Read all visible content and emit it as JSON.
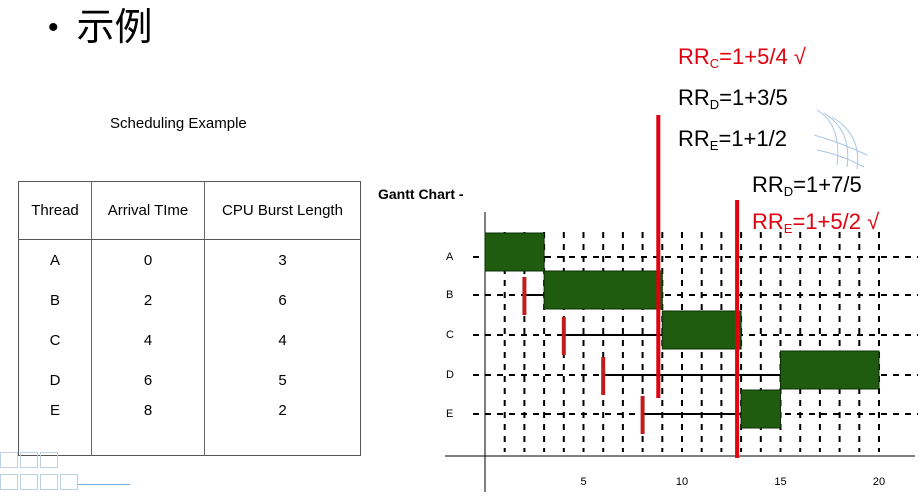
{
  "slide": {
    "bullet": "•",
    "title": "示例"
  },
  "schedule": {
    "title": "Scheduling Example",
    "columns": [
      "Thread",
      "Arrival TIme",
      "CPU Burst Length"
    ],
    "rows": [
      [
        "A",
        "0",
        "3"
      ],
      [
        "B",
        "2",
        "6"
      ],
      [
        "C",
        "4",
        "4"
      ],
      [
        "D",
        "6",
        "5"
      ],
      [
        "E",
        "8",
        "2"
      ]
    ]
  },
  "gantt": {
    "label": "Gantt Chart -",
    "threads": [
      "A",
      "B",
      "C",
      "D",
      "E"
    ],
    "x_ticks": [
      "5",
      "10",
      "15",
      "20"
    ],
    "run_intervals": [
      {
        "thread": "A",
        "start": 0,
        "end": 3
      },
      {
        "thread": "B",
        "start": 3,
        "end": 9
      },
      {
        "thread": "C",
        "start": 9,
        "end": 13
      },
      {
        "thread": "D",
        "start": 15,
        "end": 20
      },
      {
        "thread": "E",
        "start": 13,
        "end": 15
      }
    ],
    "wait_intervals": [
      {
        "thread": "B",
        "start": 2,
        "end": 3
      },
      {
        "thread": "C",
        "start": 4,
        "end": 9
      },
      {
        "thread": "D",
        "start": 6,
        "end": 15
      },
      {
        "thread": "E",
        "start": 8,
        "end": 13
      }
    ],
    "decision_points": [
      9,
      13
    ],
    "colors": {
      "run": "#1f5c0f",
      "marker": "#e0000f",
      "arrival": "#c11d1d"
    }
  },
  "ratios_first": [
    {
      "name": "RR",
      "sub": "C",
      "expr": "=1+5/4 √",
      "color": "red"
    },
    {
      "name": "RR",
      "sub": "D",
      "expr": "=1+3/5",
      "color": "black"
    },
    {
      "name": "RR",
      "sub": "E",
      "expr": "=1+1/2",
      "color": "black"
    }
  ],
  "ratios_second": [
    {
      "name": "RR",
      "sub": "D",
      "expr": "=1+7/5",
      "color": "black"
    },
    {
      "name": "RR",
      "sub": "E",
      "expr": "=1+5/2 √",
      "color": "red"
    }
  ]
}
